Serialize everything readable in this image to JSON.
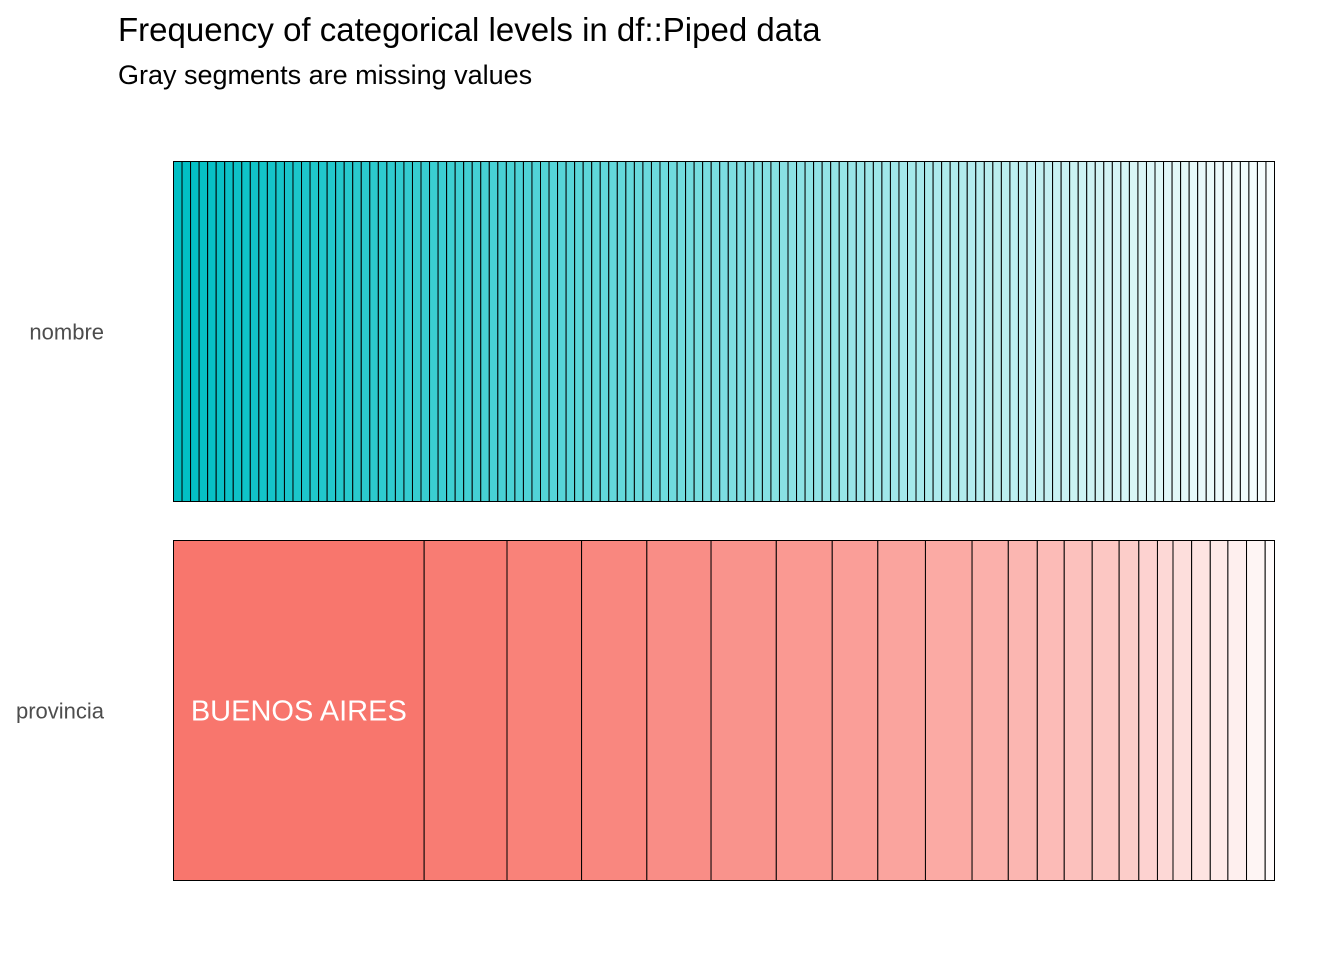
{
  "chart_data": {
    "type": "bar",
    "orientation": "horizontal-stacked",
    "title": "Frequency of categorical levels in df::Piped data",
    "subtitle": "Gray segments are missing values",
    "xlabel": "",
    "ylabel": "",
    "grid": false,
    "legend": "none",
    "rows": [
      {
        "name": "nombre",
        "color": "#00BFC4",
        "uniform_levels": 129,
        "label": ""
      },
      {
        "name": "provincia",
        "color": "#F8766D",
        "values": [
          242,
          80,
          72,
          63,
          62,
          63,
          54,
          44,
          46,
          45,
          35,
          28,
          26,
          27,
          26,
          19,
          18,
          15,
          18,
          18,
          17,
          18,
          18,
          9
        ],
        "label": "BUENOS AIRES"
      }
    ]
  }
}
